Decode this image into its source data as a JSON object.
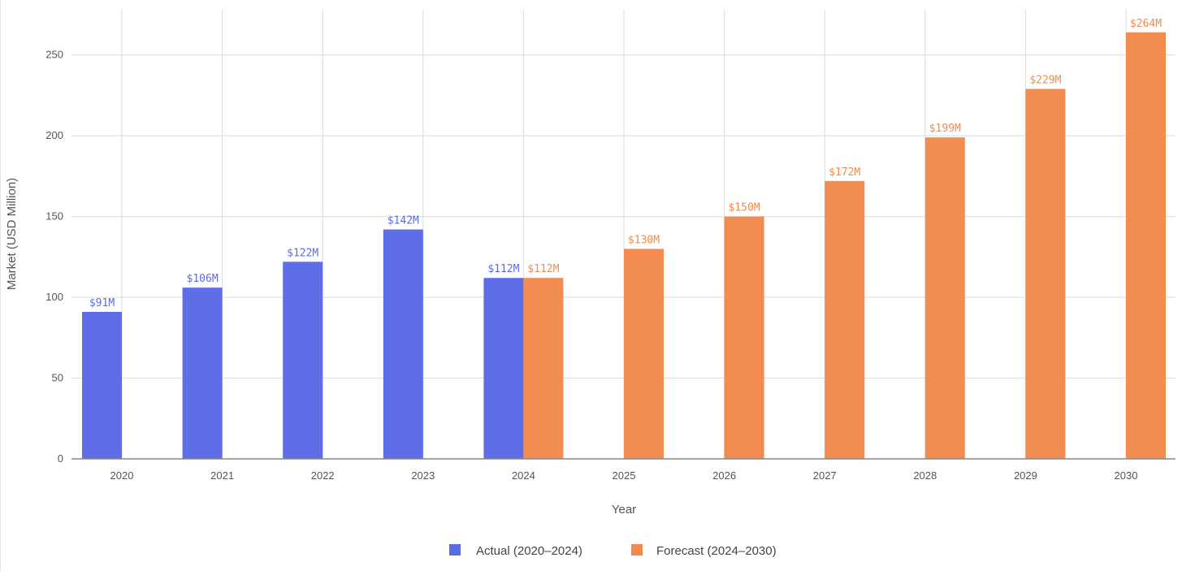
{
  "chart_data": {
    "type": "bar",
    "categories": [
      "2020",
      "2021",
      "2022",
      "2023",
      "2024",
      "2025",
      "2026",
      "2027",
      "2028",
      "2029",
      "2030"
    ],
    "series": [
      {
        "name": "Actual (2020–2024)",
        "color": "#5b6be6",
        "values": [
          91,
          106,
          122,
          142,
          112,
          null,
          null,
          null,
          null,
          null,
          null
        ],
        "labels": [
          "$91M",
          "$106M",
          "$122M",
          "$142M",
          "$112M",
          null,
          null,
          null,
          null,
          null,
          null
        ]
      },
      {
        "name": "Forecast (2024–2030)",
        "color": "#f28a4c",
        "values": [
          null,
          null,
          null,
          null,
          112,
          130,
          150,
          172,
          199,
          229,
          264
        ],
        "labels": [
          null,
          null,
          null,
          null,
          "$112M",
          "$130M",
          "$150M",
          "$172M",
          "$199M",
          "$229M",
          "$264M"
        ]
      }
    ],
    "xlabel": "Year",
    "ylabel": "Market (USD Million)",
    "ylim": [
      0,
      278
    ],
    "yticks": [
      0,
      50,
      100,
      150,
      200,
      250
    ],
    "grid": true,
    "legend_position": "bottom-center"
  }
}
